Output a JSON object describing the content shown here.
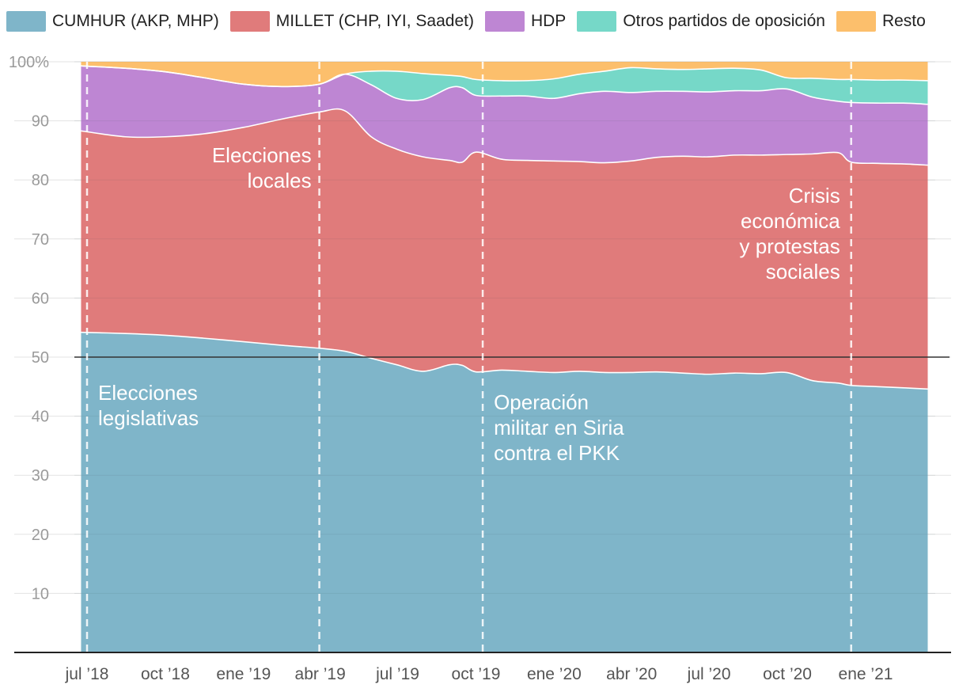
{
  "chart_data": {
    "type": "area",
    "stacked": true,
    "ylim": [
      0,
      100
    ],
    "y_ticks": [
      10,
      20,
      30,
      40,
      50,
      60,
      70,
      80,
      90,
      100
    ],
    "y_tick_labels": [
      "10",
      "20",
      "30",
      "40",
      "50",
      "60",
      "70",
      "80",
      "90",
      "100%"
    ],
    "reference_line": 50,
    "x_ticks": [
      "2018-07",
      "2018-10",
      "2019-01",
      "2019-04",
      "2019-07",
      "2019-10",
      "2020-01",
      "2020-04",
      "2020-07",
      "2020-10",
      "2021-01"
    ],
    "x_tick_labels": [
      "jul ’18",
      "oct ’18",
      "ene ’19",
      "abr ’19",
      "jul ’19",
      "oct ’19",
      "ene ’20",
      "abr ’20",
      "jul ’20",
      "oct ’20",
      "ene ’21"
    ],
    "x": [
      "2018-06-24",
      "2018-08-15",
      "2018-10-01",
      "2018-11-15",
      "2019-01-01",
      "2019-02-15",
      "2019-03-31",
      "2019-04-30",
      "2019-05-31",
      "2019-06-30",
      "2019-07-31",
      "2019-08-31",
      "2019-09-15",
      "2019-10-01",
      "2019-10-31",
      "2019-11-30",
      "2019-12-31",
      "2020-01-31",
      "2020-02-29",
      "2020-03-31",
      "2020-04-30",
      "2020-05-31",
      "2020-06-30",
      "2020-07-31",
      "2020-08-31",
      "2020-09-30",
      "2020-10-31",
      "2020-11-30",
      "2020-12-15",
      "2021-01-15",
      "2021-02-15",
      "2021-03-15"
    ],
    "series": [
      {
        "name": "CUMHUR (AKP, MHP)",
        "color": "#7fb5c9",
        "values": [
          54.2,
          54.0,
          53.7,
          53.2,
          52.6,
          52.0,
          51.5,
          51.0,
          49.8,
          48.7,
          47.6,
          48.7,
          48.6,
          47.5,
          47.8,
          47.6,
          47.4,
          47.6,
          47.4,
          47.4,
          47.5,
          47.3,
          47.1,
          47.3,
          47.2,
          47.4,
          46.0,
          45.6,
          45.2,
          45.0,
          44.8,
          44.6
        ]
      },
      {
        "name": "MILLET (CHP, IYI, Saadet)",
        "color": "#e07b7b",
        "values": [
          88.3,
          87.3,
          87.3,
          87.8,
          88.9,
          90.3,
          91.5,
          91.7,
          87.3,
          85.2,
          83.9,
          83.3,
          83.0,
          84.7,
          83.5,
          83.3,
          83.2,
          83.1,
          82.9,
          83.2,
          83.8,
          84.0,
          83.9,
          84.2,
          84.2,
          84.3,
          84.4,
          84.6,
          83.0,
          82.8,
          82.7,
          82.5
        ]
      },
      {
        "name": "HDP",
        "color": "#be86d3",
        "values": [
          99.3,
          98.9,
          98.3,
          97.3,
          96.2,
          95.8,
          96.2,
          97.9,
          96.1,
          93.8,
          93.6,
          95.6,
          95.6,
          94.3,
          94.2,
          94.2,
          93.8,
          94.6,
          95.0,
          94.8,
          95.0,
          95.0,
          94.9,
          95.1,
          95.1,
          95.4,
          94.0,
          93.3,
          93.1,
          93.0,
          93.0,
          92.8
        ]
      },
      {
        "name": "Otros partidos de oposición",
        "color": "#76d8c8",
        "values": [
          99.3,
          98.9,
          98.3,
          97.3,
          96.2,
          95.8,
          96.2,
          97.9,
          98.4,
          98.4,
          98.0,
          97.7,
          97.5,
          97.0,
          96.8,
          96.8,
          97.1,
          97.9,
          98.4,
          99.0,
          98.8,
          98.7,
          98.8,
          98.9,
          98.6,
          97.3,
          97.2,
          97.0,
          97.0,
          96.9,
          96.9,
          96.8
        ]
      },
      {
        "name": "Resto",
        "color": "#fcbf6c",
        "values": [
          100,
          100,
          100,
          100,
          100,
          100,
          100,
          100,
          100,
          100,
          100,
          100,
          100,
          100,
          100,
          100,
          100,
          100,
          100,
          100,
          100,
          100,
          100,
          100,
          100,
          100,
          100,
          100,
          100,
          100,
          100,
          100
        ]
      }
    ],
    "events": [
      {
        "date": "2018-07-01",
        "label": [
          "Elecciones",
          "legislativas"
        ]
      },
      {
        "date": "2019-03-31",
        "label": [
          "Elecciones",
          "locales"
        ]
      },
      {
        "date": "2019-10-09",
        "label": [
          "Operación",
          "militar en Siria",
          "contra el PKK"
        ]
      },
      {
        "date": "2020-12-15",
        "label": [
          "Crisis",
          "económica",
          "y protestas",
          "sociales"
        ]
      }
    ]
  }
}
